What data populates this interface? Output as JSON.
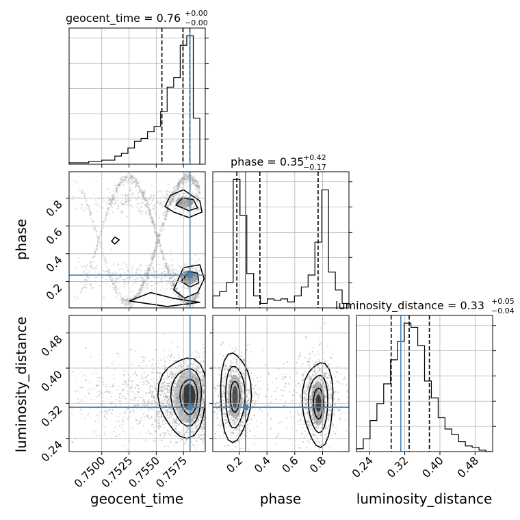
{
  "chart_data": {
    "type": "corner",
    "parameters": [
      "geocent_time",
      "phase",
      "luminosity_distance"
    ],
    "truths": {
      "geocent_time": 0.7581,
      "phase": 0.246,
      "luminosity_distance": 0.311
    },
    "panels": {
      "geocent_time": {
        "type": "histogram",
        "title_main": "geocent_time = 0.76",
        "title_plus": "+0.00",
        "title_minus": "−0.00",
        "xlim": [
          0.747,
          0.7595
        ],
        "edges": [
          0.747,
          0.7476,
          0.7482,
          0.7488,
          0.7494,
          0.75,
          0.7506,
          0.7512,
          0.7518,
          0.7524,
          0.753,
          0.7536,
          0.7542,
          0.7548,
          0.7554,
          0.756,
          0.7566,
          0.7572,
          0.7578,
          0.7584,
          0.759
        ],
        "counts": [
          1,
          1,
          1,
          2,
          2,
          3,
          3,
          6,
          8,
          12,
          17,
          19,
          24,
          28,
          39,
          57,
          64,
          88,
          95,
          34
        ],
        "quantiles": [
          0.75552,
          0.75745,
          0.75808
        ]
      },
      "phase": {
        "type": "histogram",
        "title_main": "phase = 0.35",
        "title_plus": "+0.42",
        "title_minus": "−0.17",
        "xlim": [
          0.01,
          0.99
        ],
        "xticks": [
          "0.2",
          "0.4",
          "0.6",
          "0.8"
        ],
        "edges": [
          0.01,
          0.059,
          0.108,
          0.157,
          0.206,
          0.255,
          0.304,
          0.353,
          0.402,
          0.451,
          0.5,
          0.549,
          0.598,
          0.647,
          0.696,
          0.745,
          0.794,
          0.843,
          0.892,
          0.941,
          0.99
        ],
        "counts": [
          8,
          11,
          17,
          86,
          62,
          23,
          8,
          3,
          6,
          5,
          6,
          4,
          8,
          14,
          22,
          44,
          79,
          24,
          12,
          3
        ],
        "quantiles": [
          0.183,
          0.349,
          0.768
        ]
      },
      "luminosity_distance": {
        "type": "histogram",
        "title_main": "luminosity_distance = 0.33",
        "title_plus": "+0.05",
        "title_minus": "−0.04",
        "xlim": [
          0.21,
          0.52
        ],
        "xticks": [
          "0.24",
          "0.32",
          "0.40",
          "0.48"
        ],
        "edges": [
          0.21,
          0.2255,
          0.241,
          0.2565,
          0.272,
          0.2875,
          0.303,
          0.3185,
          0.334,
          0.3495,
          0.365,
          0.3805,
          0.396,
          0.4115,
          0.427,
          0.4425,
          0.458,
          0.4735,
          0.489,
          0.5045,
          0.52
        ],
        "counts": [
          2,
          9,
          22,
          34,
          48,
          65,
          78,
          91,
          88,
          75,
          50,
          38,
          24,
          16,
          12,
          7,
          4,
          3,
          1,
          0
        ],
        "quantiles": [
          0.289,
          0.33,
          0.376
        ]
      },
      "phase_vs_geocent_time": {
        "type": "scatter-contour",
        "xlabel": "",
        "ylabel": "phase",
        "xlim": [
          0.747,
          0.7595
        ],
        "ylim": [
          0.01,
          0.99
        ],
        "yticks": [
          "0.2",
          "0.4",
          "0.6",
          "0.8"
        ]
      },
      "luminosity_distance_vs_geocent_time": {
        "type": "scatter-contour",
        "xlabel": "geocent_time",
        "ylabel": "luminosity_distance",
        "xlim": [
          0.747,
          0.7595
        ],
        "ylim": [
          0.21,
          0.52
        ],
        "xticks": [
          "0.7500",
          "0.7525",
          "0.7550",
          "0.7575"
        ],
        "yticks": [
          "0.24",
          "0.32",
          "0.40",
          "0.48"
        ]
      },
      "luminosity_distance_vs_phase": {
        "type": "scatter-contour",
        "xlabel": "phase",
        "xlim": [
          0.01,
          0.99
        ],
        "ylim": [
          0.21,
          0.52
        ],
        "xticks": [
          "0.2",
          "0.4",
          "0.6",
          "0.8"
        ]
      }
    },
    "axis_labels": {
      "x1": "geocent_time",
      "x2": "phase",
      "x3": "luminosity_distance",
      "y2": "phase",
      "y3": "luminosity_distance"
    },
    "colors": {
      "truth": "#4682b4",
      "hist": "#000000",
      "grid": "#b0b0b0",
      "scatter": "#9a9a9a"
    },
    "grid": true
  }
}
